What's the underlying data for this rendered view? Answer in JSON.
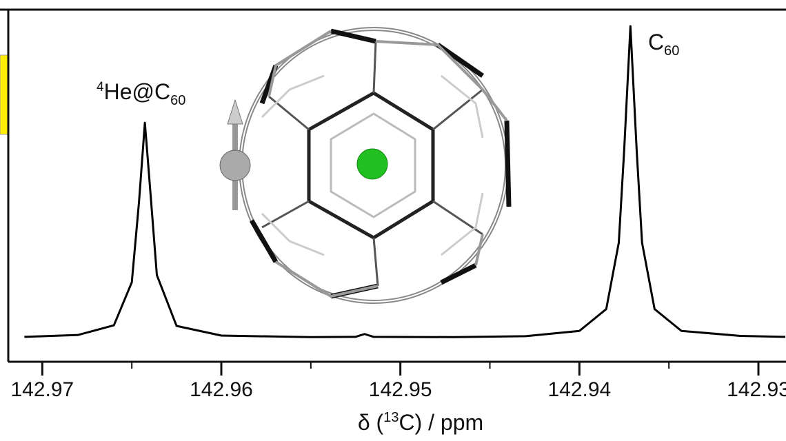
{
  "chart_data": {
    "type": "line",
    "x_label": {
      "before": "δ (",
      "sup": "13",
      "after": "C) / ppm"
    },
    "annotations": [
      {
        "sup": "4",
        "text": "He@C",
        "sub": "60"
      },
      {
        "text": "C",
        "sub": "60"
      }
    ],
    "x": [
      142.971,
      142.968,
      142.966,
      142.965,
      142.9646,
      142.96427,
      142.964,
      142.9636,
      142.9625,
      142.96,
      142.955,
      142.9525,
      142.952,
      142.9515,
      142.947,
      142.943,
      142.94,
      142.9385,
      142.9378,
      142.9375,
      142.93715,
      142.9368,
      142.9365,
      142.9358,
      142.9343,
      142.931,
      142.9285
    ],
    "series": [
      {
        "color": "#000000",
        "values": [
          0.003,
          0.009,
          0.04,
          0.178,
          0.434,
          0.69,
          0.495,
          0.201,
          0.038,
          0.007,
          0.002,
          0.003,
          0.012,
          0.003,
          0.002,
          0.005,
          0.022,
          0.092,
          0.305,
          0.601,
          1.0,
          0.601,
          0.305,
          0.092,
          0.022,
          0.006,
          0.003
        ]
      }
    ],
    "xlim": [
      142.9719,
      142.92846
    ],
    "xticks": [
      142.97,
      142.96,
      142.95,
      142.94,
      142.93
    ],
    "xminorticks": [
      142.965,
      142.955,
      142.945,
      142.935
    ],
    "ylim": [
      -0.077,
      1.053
    ]
  }
}
